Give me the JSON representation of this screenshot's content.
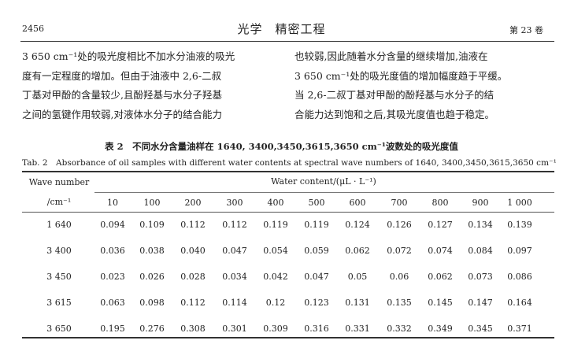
{
  "header": {
    "page_number": "2456",
    "journal": "光学　精密工程",
    "volume": "第 23 卷"
  },
  "body": {
    "left_column": "3 650 cm⁻¹处的吸光度相比不加水分油液的吸光\n度有一定程度的增加。但由于油液中 2,6-二叔\n丁基对甲酚的含量较少,且酚羟基与水分子羟基\n之间的氢键作用较弱,对液体水分子的结合能力",
    "right_column": "也较弱,因此随着水分含量的继续增加,油液在\n3 650 cm⁻¹处的吸光度值的增加幅度趋于平缓。\n当 2,6-二叔丁基对甲酚的酚羟基与水分子的结\n合能力达到饱和之后,其吸光度值也趋于稳定。"
  },
  "table": {
    "caption_cn": "表 2　不同水分含量油样在 1640, 3400,3450,3615,3650 cm⁻¹波数处的吸光度值",
    "caption_en": "Tab. 2　Absorbance of oil samples with different water contents at spectral wave numbers of 1640, 3400,3450,3615,3650 cm⁻¹",
    "row_header_line1": "Wave number",
    "row_header_line2": "/cm⁻¹",
    "group_header": "Water content/(μL · L⁻¹)",
    "columns": [
      "10",
      "100",
      "200",
      "300",
      "400",
      "500",
      "600",
      "700",
      "800",
      "900",
      "1 000"
    ],
    "rows": [
      {
        "wave": "1 640",
        "values": [
          "0.094",
          "0.109",
          "0.112",
          "0.112",
          "0.119",
          "0.119",
          "0.124",
          "0.126",
          "0.127",
          "0.134",
          "0.139"
        ]
      },
      {
        "wave": "3 400",
        "values": [
          "0.036",
          "0.038",
          "0.040",
          "0.047",
          "0.054",
          "0.059",
          "0.062",
          "0.072",
          "0.074",
          "0.084",
          "0.097"
        ]
      },
      {
        "wave": "3 450",
        "values": [
          "0.023",
          "0.026",
          "0.028",
          "0.034",
          "0.042",
          "0.047",
          "0.05",
          "0.06",
          "0.062",
          "0.073",
          "0.086"
        ]
      },
      {
        "wave": "3 615",
        "values": [
          "0.063",
          "0.098",
          "0.112",
          "0.114",
          "0.12",
          "0.123",
          "0.131",
          "0.135",
          "0.145",
          "0.147",
          "0.164"
        ]
      },
      {
        "wave": "3 650",
        "values": [
          "0.195",
          "0.276",
          "0.308",
          "0.301",
          "0.309",
          "0.316",
          "0.331",
          "0.332",
          "0.349",
          "0.345",
          "0.371"
        ]
      }
    ]
  }
}
